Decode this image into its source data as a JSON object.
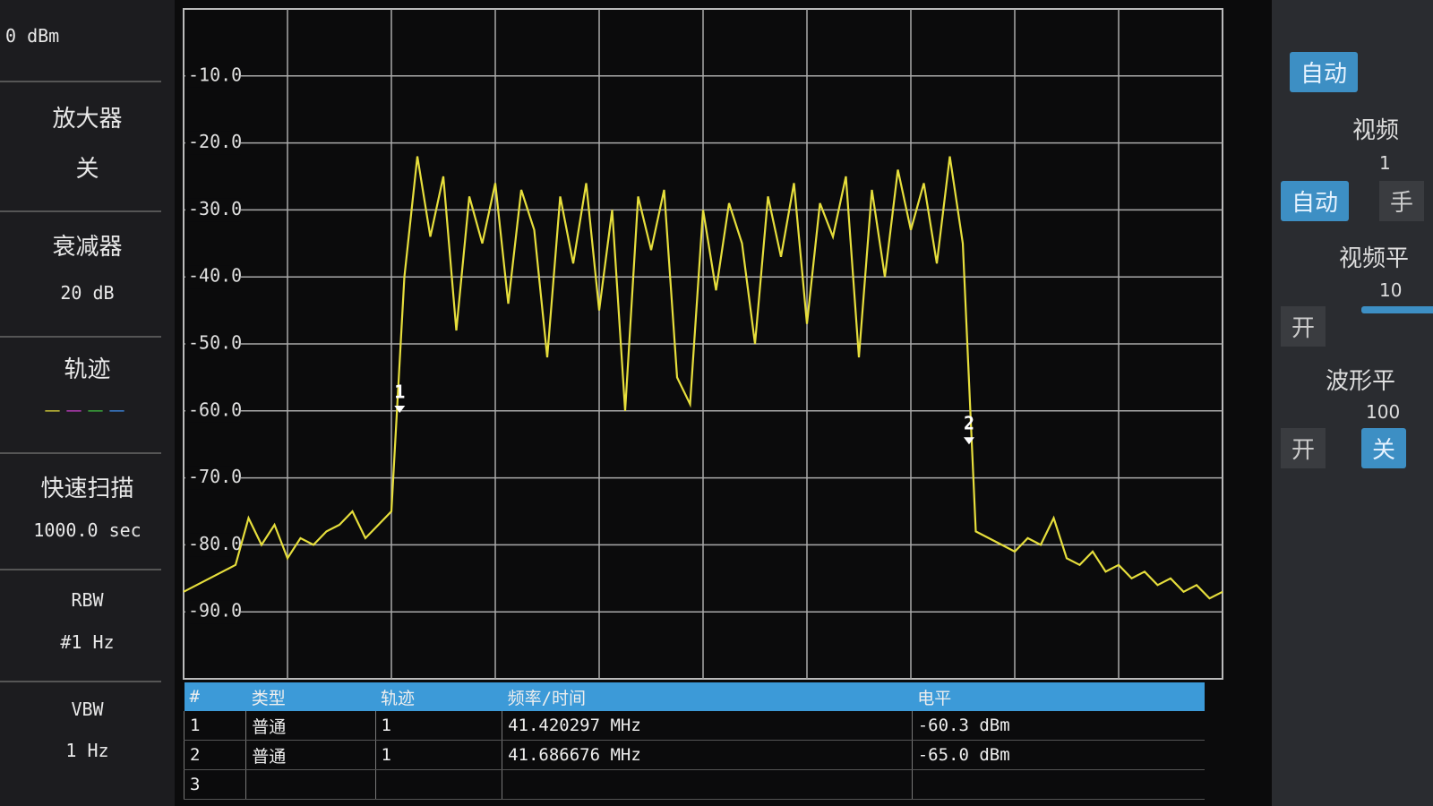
{
  "left_panel": {
    "ref_level": "0 dBm",
    "amp_label": "放大器",
    "amp_state": "关",
    "atten_label": "衰减器",
    "atten_value": "20 dB",
    "trace_label": "轨迹",
    "sweep_label": "快速扫描",
    "sweep_value": "1000.0 sec",
    "rbw_label": "RBW",
    "rbw_value": "#1 Hz",
    "vbw_label": "VBW",
    "vbw_value": "1 Hz"
  },
  "right_panel": {
    "b1": "自动",
    "video_label": "视频",
    "video_value": "1",
    "b2": "自动",
    "b3": "手",
    "vfilter_label": "视频平",
    "vfilter_value": "10",
    "b4": "开",
    "wave_label": "波形平",
    "wave_value": "100",
    "b5": "开",
    "b6": "关"
  },
  "chart_data": {
    "type": "line",
    "color": "#e6de3c",
    "grid": true,
    "ylim": [
      -100,
      0
    ],
    "yticks": [
      {
        "value": -10,
        "label": "-10.0"
      },
      {
        "value": -20,
        "label": "-20.0"
      },
      {
        "value": -30,
        "label": "-30.0"
      },
      {
        "value": -40,
        "label": "-40.0"
      },
      {
        "value": -50,
        "label": "-50.0"
      },
      {
        "value": -60,
        "label": "-60.0"
      },
      {
        "value": -70,
        "label": "-70.0"
      },
      {
        "value": -80,
        "label": "-80.0"
      },
      {
        "value": -90,
        "label": "-90.0"
      }
    ],
    "values": [
      -87,
      -86,
      -85,
      -84,
      -83,
      -76,
      -80,
      -77,
      -82,
      -79,
      -80,
      -78,
      -77,
      -75,
      -79,
      -77,
      -75,
      -40,
      -22,
      -34,
      -25,
      -48,
      -28,
      -35,
      -26,
      -44,
      -27,
      -33,
      -52,
      -28,
      -38,
      -26,
      -45,
      -30,
      -60,
      -28,
      -36,
      -27,
      -55,
      -59,
      -30,
      -42,
      -29,
      -35,
      -50,
      -28,
      -37,
      -26,
      -47,
      -29,
      -34,
      -25,
      -52,
      -27,
      -40,
      -24,
      -33,
      -26,
      -38,
      -22,
      -35,
      -78,
      -79,
      -80,
      -81,
      -79,
      -80,
      -76,
      -82,
      -83,
      -81,
      -84,
      -83,
      -85,
      -84,
      -86,
      -85,
      -87,
      -86,
      -88,
      -87
    ],
    "markers": [
      {
        "label": "1",
        "value": -60.3
      },
      {
        "label": "2",
        "value": -65.0
      }
    ]
  },
  "table": {
    "header": [
      "#",
      "类型",
      "轨迹",
      "频率/时间",
      "电平"
    ],
    "rows": [
      [
        "1",
        "普通",
        "1",
        "41.420297 MHz",
        "-60.3 dBm"
      ],
      [
        "2",
        "普通",
        "1",
        "41.686676 MHz",
        "-65.0 dBm"
      ],
      [
        "3"
      ]
    ]
  }
}
